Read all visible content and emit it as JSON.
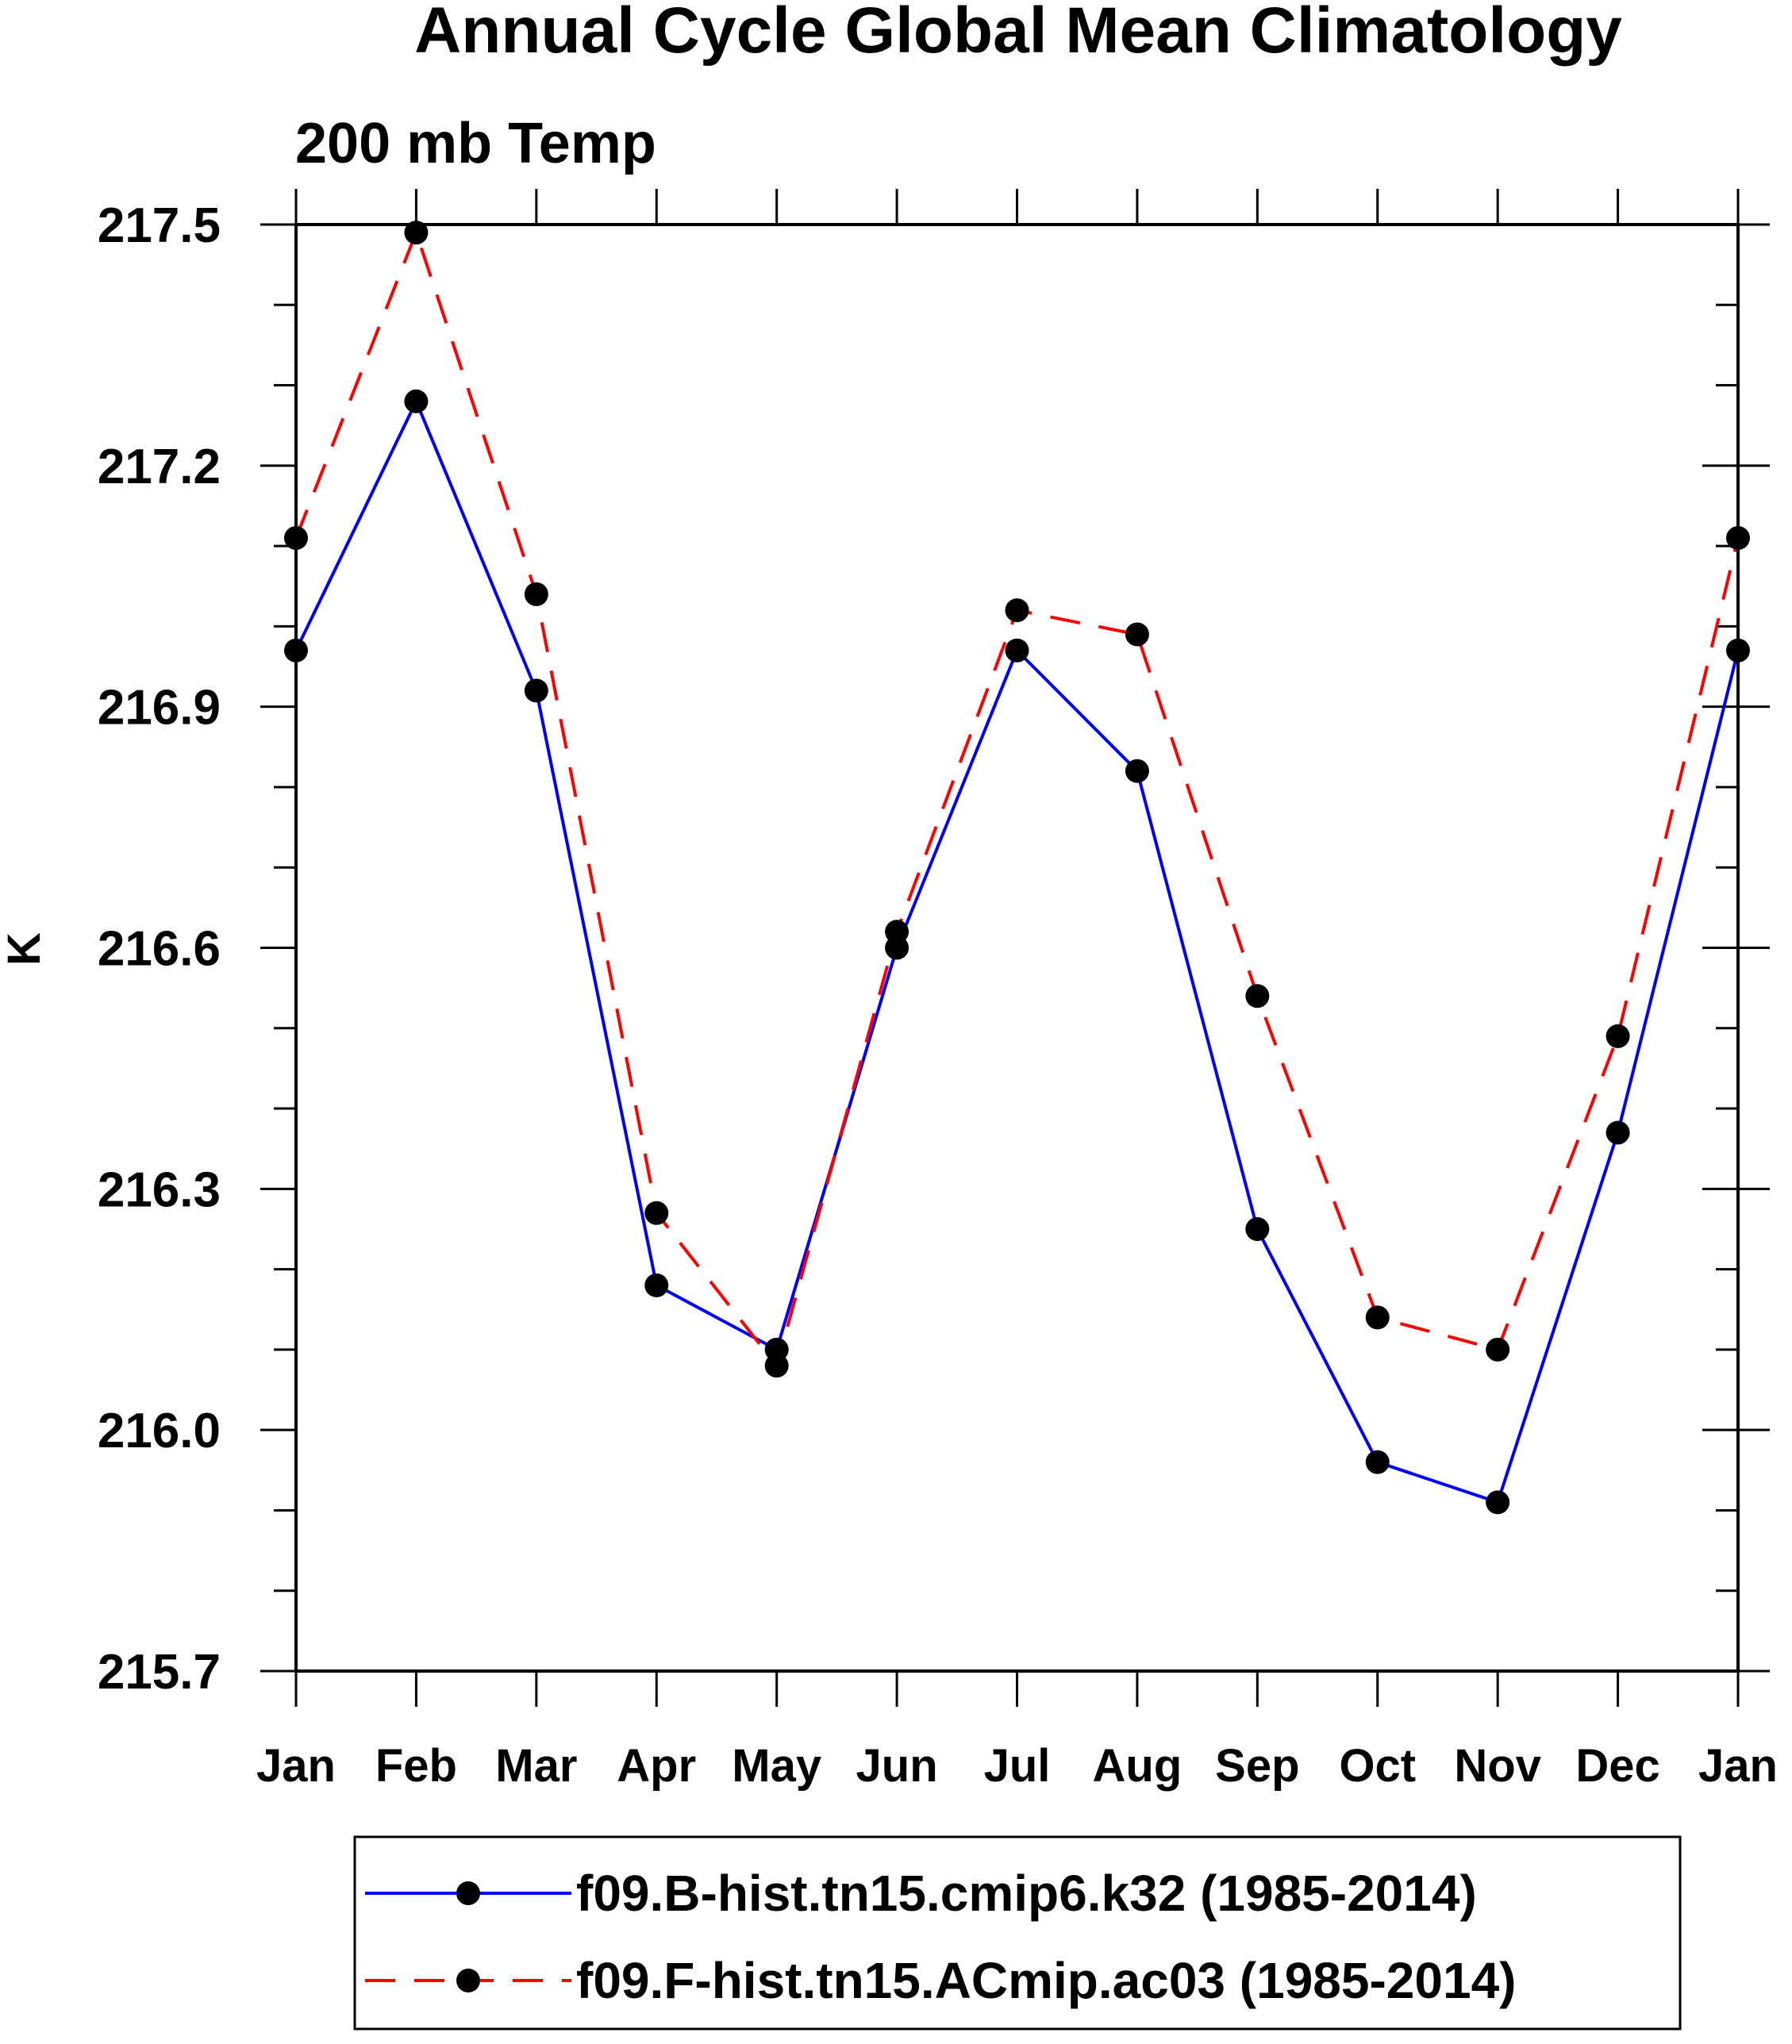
{
  "chart_data": {
    "type": "line",
    "title": "Annual Cycle Global Mean Climatology",
    "subtitle": "200 mb Temp",
    "xlabel": "",
    "ylabel": "K",
    "categories": [
      "Jan",
      "Feb",
      "Mar",
      "Apr",
      "May",
      "Jun",
      "Jul",
      "Aug",
      "Sep",
      "Oct",
      "Nov",
      "Dec",
      "Jan"
    ],
    "ylim": [
      215.7,
      217.5
    ],
    "yticks": [
      "215.7",
      "216.0",
      "216.3",
      "216.6",
      "216.9",
      "217.2",
      "217.5"
    ],
    "grid": false,
    "legend_position": "bottom",
    "series": [
      {
        "name": "f09.B-hist.tn15.cmip6.k32 (1985-2014)",
        "color": "#0000ff",
        "dash": "solid",
        "values": [
          216.97,
          217.28,
          216.92,
          216.18,
          216.1,
          216.6,
          216.97,
          216.82,
          216.25,
          215.96,
          215.91,
          216.37,
          216.97
        ]
      },
      {
        "name": "f09.F-hist.tn15.ACmip.ac03 (1985-2014)",
        "color": "#ff0000",
        "dash": "dashed",
        "values": [
          217.11,
          217.49,
          217.04,
          216.27,
          216.08,
          216.62,
          217.02,
          216.99,
          216.54,
          216.14,
          216.1,
          216.49,
          217.11
        ]
      }
    ]
  }
}
